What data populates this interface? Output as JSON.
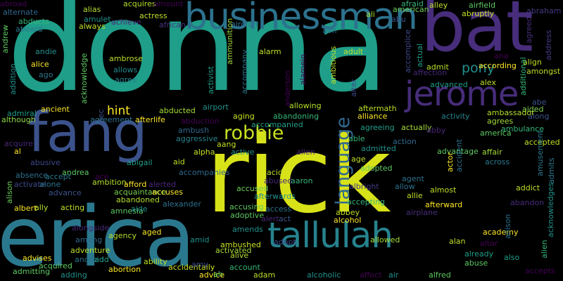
{
  "cloud": {
    "words": [
      {
        "text": "donna",
        "color": "#1f9e89"
      },
      {
        "text": "rick",
        "color": "#d8e219"
      },
      {
        "text": "erica",
        "color": "#2a788e"
      },
      {
        "text": "bat",
        "color": "#472d7b"
      },
      {
        "text": "fang",
        "color": "#3b528b"
      },
      {
        "text": "businessman",
        "color": "#2c728e"
      },
      {
        "text": "jerome",
        "color": "#472d7b"
      },
      {
        "text": "tallulah",
        "color": "#26828e"
      },
      {
        "text": "robbie",
        "color": "#c8e020"
      },
      {
        "text": "language",
        "color": "#31688e"
      },
      {
        "text": "pony",
        "color": "#21918c"
      },
      {
        "text": "hint",
        "color": "#fde725"
      },
      {
        "text": "alternate",
        "color": "#31688e"
      },
      {
        "text": "abducts",
        "color": "#35b779"
      },
      {
        "text": "aboard",
        "color": "#2a788e"
      },
      {
        "text": "alias",
        "color": "#b5de2b"
      },
      {
        "text": "amulet",
        "color": "#21918c"
      },
      {
        "text": "acquires",
        "color": "#b5de2b"
      },
      {
        "text": "achieve",
        "color": "#482878"
      },
      {
        "text": "amount",
        "color": "#440154"
      },
      {
        "text": "actress",
        "color": "#bddf26"
      },
      {
        "text": "african",
        "color": "#46337e"
      },
      {
        "text": "aircraft",
        "color": "#2c728e"
      },
      {
        "text": "always",
        "color": "#bddf26"
      },
      {
        "text": "aim",
        "color": "#31688e"
      },
      {
        "text": "ali",
        "color": "#a5db36"
      },
      {
        "text": "afraid",
        "color": "#35b779"
      },
      {
        "text": "american",
        "color": "#6ece58"
      },
      {
        "text": "abu",
        "color": "#3b528b"
      },
      {
        "text": "alley",
        "color": "#bddf26"
      },
      {
        "text": "airfield",
        "color": "#5ec962"
      },
      {
        "text": "abruptly",
        "color": "#c2df23"
      },
      {
        "text": "abraham",
        "color": "#443983"
      },
      {
        "text": "agreed",
        "color": "#472d7b"
      },
      {
        "text": "address",
        "color": "#443983"
      },
      {
        "text": "andrew",
        "color": "#5ec962"
      },
      {
        "text": "andie",
        "color": "#21918c"
      },
      {
        "text": "ambrose",
        "color": "#bddf26"
      },
      {
        "text": "alarm",
        "color": "#c2df23"
      },
      {
        "text": "adult",
        "color": "#bddf26"
      },
      {
        "text": "alice",
        "color": "#fde725"
      },
      {
        "text": "allows",
        "color": "#228c8d"
      },
      {
        "text": "ago",
        "color": "#2a788e"
      },
      {
        "text": "agree",
        "color": "#26828e"
      },
      {
        "text": "acknowledge",
        "color": "#5ec962"
      },
      {
        "text": "addition",
        "color": "#21918c"
      },
      {
        "text": "activist",
        "color": "#1f9e89"
      },
      {
        "text": "accompany",
        "color": "#2a788e"
      },
      {
        "text": "ammunition",
        "color": "#9fda3a"
      },
      {
        "text": "anderson",
        "color": "#440154"
      },
      {
        "text": "alamein",
        "color": "#440154"
      },
      {
        "text": "ambitious",
        "color": "#bddf26"
      },
      {
        "text": "alter",
        "color": "#3e4989"
      },
      {
        "text": "accomplice",
        "color": "#3e4989"
      },
      {
        "text": "actual",
        "color": "#1f9e89"
      },
      {
        "text": "affection",
        "color": "#482878"
      },
      {
        "text": "admit",
        "color": "#bddf26"
      },
      {
        "text": "according",
        "color": "#fde725"
      },
      {
        "text": "ana",
        "color": "#440154"
      },
      {
        "text": "align",
        "color": "#bddf26"
      },
      {
        "text": "amongst",
        "color": "#bddf26"
      },
      {
        "text": "additional",
        "color": "#35b779"
      },
      {
        "text": "advanced",
        "color": "#1f9e89"
      },
      {
        "text": "alex",
        "color": "#bddf26"
      },
      {
        "text": "abe",
        "color": "#3b528b"
      },
      {
        "text": "aided",
        "color": "#7ad151"
      },
      {
        "text": "along",
        "color": "#3b528b"
      },
      {
        "text": "admiral",
        "color": "#1f9e89"
      },
      {
        "text": "ancient",
        "color": "#fde725"
      },
      {
        "text": "alec",
        "color": "#3b528b"
      },
      {
        "text": "abducted",
        "color": "#a5db36"
      },
      {
        "text": "airport",
        "color": "#21918c"
      },
      {
        "text": "allowing",
        "color": "#b5de2b"
      },
      {
        "text": "aftermath",
        "color": "#bddf26"
      },
      {
        "text": "alliance",
        "color": "#fde725"
      },
      {
        "text": "although",
        "color": "#8fd744"
      },
      {
        "text": "agreement",
        "color": "#2c728e"
      },
      {
        "text": "afterlife",
        "color": "#fde725"
      },
      {
        "text": "abduction",
        "color": "#440154"
      },
      {
        "text": "aging",
        "color": "#c8e020"
      },
      {
        "text": "abandoning",
        "color": "#35b779"
      },
      {
        "text": "activity",
        "color": "#26828e"
      },
      {
        "text": "ambassador",
        "color": "#b5de2b"
      },
      {
        "text": "agrees",
        "color": "#a5db36"
      },
      {
        "text": "america",
        "color": "#5ec962"
      },
      {
        "text": "ambulance",
        "color": "#35b779"
      },
      {
        "text": "accompanied",
        "color": "#1f9e89"
      },
      {
        "text": "ambush",
        "color": "#31688e"
      },
      {
        "text": "aggressive",
        "color": "#26828e"
      },
      {
        "text": "agreeing",
        "color": "#1f9e89"
      },
      {
        "text": "actually",
        "color": "#a5db36"
      },
      {
        "text": "abby",
        "color": "#482878"
      },
      {
        "text": "aang",
        "color": "#c2df23"
      },
      {
        "text": "able",
        "color": "#35b779"
      },
      {
        "text": "action",
        "color": "#31688e"
      },
      {
        "text": "accepted",
        "color": "#c2df23"
      },
      {
        "text": "acquire",
        "color": "#482878"
      },
      {
        "text": "al",
        "color": "#fde725"
      },
      {
        "text": "alpha",
        "color": "#c8e020"
      },
      {
        "text": "active",
        "color": "#21918c"
      },
      {
        "text": "allen",
        "color": "#482878"
      },
      {
        "text": "admitted",
        "color": "#21918c"
      },
      {
        "text": "advantage",
        "color": "#5ec962"
      },
      {
        "text": "affair",
        "color": "#a5db36"
      },
      {
        "text": "across",
        "color": "#2a788e"
      },
      {
        "text": "aid",
        "color": "#bddf26"
      },
      {
        "text": "abusive",
        "color": "#3e4989"
      },
      {
        "text": "abigail",
        "color": "#1f9e89"
      },
      {
        "text": "andrea",
        "color": "#5ec962"
      },
      {
        "text": "accompanies",
        "color": "#31688e"
      },
      {
        "text": "acid",
        "color": "#bddf26"
      },
      {
        "text": "age",
        "color": "#bddf26"
      },
      {
        "text": "adopted",
        "color": "#5ec962"
      },
      {
        "text": "actor",
        "color": "#fde725"
      },
      {
        "text": "accident",
        "color": "#2c728e"
      },
      {
        "text": "amusement",
        "color": "#2a788e"
      },
      {
        "text": "admits",
        "color": "#2a788e"
      },
      {
        "text": "absence",
        "color": "#2c728e"
      },
      {
        "text": "accept",
        "color": "#2a788e"
      },
      {
        "text": "ace",
        "color": "#440154"
      },
      {
        "text": "activate",
        "color": "#3e4989"
      },
      {
        "text": "alone",
        "color": "#2c728e"
      },
      {
        "text": "ambition",
        "color": "#b5de2b"
      },
      {
        "text": "afford",
        "color": "#fde725"
      },
      {
        "text": "alerted",
        "color": "#482878"
      },
      {
        "text": "abused",
        "color": "#482878"
      },
      {
        "text": "aaron",
        "color": "#35b779"
      },
      {
        "text": "agent",
        "color": "#2c728e"
      },
      {
        "text": "albright",
        "color": "#443983"
      },
      {
        "text": "allow",
        "color": "#2c728e"
      },
      {
        "text": "almost",
        "color": "#bddf26"
      },
      {
        "text": "addict",
        "color": "#bddf26"
      },
      {
        "text": "alison",
        "color": "#6ece58"
      },
      {
        "text": "advance",
        "color": "#3b528b"
      },
      {
        "text": "acquaintance",
        "color": "#7ad151"
      },
      {
        "text": "accuses",
        "color": "#fde725"
      },
      {
        "text": "accused",
        "color": "#6ece58"
      },
      {
        "text": "afterwards",
        "color": "#21918c"
      },
      {
        "text": "accepting",
        "color": "#35b779"
      },
      {
        "text": "allie",
        "color": "#bddf26"
      },
      {
        "text": "afterward",
        "color": "#fde725"
      },
      {
        "text": "abandon",
        "color": "#472d7b"
      },
      {
        "text": "abandoned",
        "color": "#b5de2b"
      },
      {
        "text": "albert",
        "color": "#fde725"
      },
      {
        "text": "ally",
        "color": "#b5de2b"
      },
      {
        "text": "acting",
        "color": "#bddf26"
      },
      {
        "text": "amnesia",
        "color": "#5ec962"
      },
      {
        "text": "aide",
        "color": "#21918c"
      },
      {
        "text": "alexander",
        "color": "#2c728e"
      },
      {
        "text": "accusing",
        "color": "#5ec962"
      },
      {
        "text": "access",
        "color": "#2c728e"
      },
      {
        "text": "abbey",
        "color": "#c2df23"
      },
      {
        "text": "airplane",
        "color": "#472d7b"
      },
      {
        "text": "adoptive",
        "color": "#5ec962"
      },
      {
        "text": "alert",
        "color": "#482878"
      },
      {
        "text": "act",
        "color": "#3b528b"
      },
      {
        "text": "alcohol",
        "color": "#fde725"
      },
      {
        "text": "alongside",
        "color": "#482878"
      },
      {
        "text": "agency",
        "color": "#b5de2b"
      },
      {
        "text": "aged",
        "color": "#fde725"
      },
      {
        "text": "amends",
        "color": "#21918c"
      },
      {
        "text": "academy",
        "color": "#fde725"
      },
      {
        "text": "alien",
        "color": "#35b779"
      },
      {
        "text": "acknowledges",
        "color": "#21918c"
      },
      {
        "text": "among",
        "color": "#31688e"
      },
      {
        "text": "adopt",
        "color": "#3e4989"
      },
      {
        "text": "allowed",
        "color": "#a5db36"
      },
      {
        "text": "alan",
        "color": "#bddf26"
      },
      {
        "text": "altar",
        "color": "#440154"
      },
      {
        "text": "adventure",
        "color": "#bddf26"
      },
      {
        "text": "amid",
        "color": "#21918c"
      },
      {
        "text": "ambushed",
        "color": "#c8e020"
      },
      {
        "text": "activated",
        "color": "#a5db36"
      },
      {
        "text": "alive",
        "color": "#b5de2b"
      },
      {
        "text": "already",
        "color": "#1f9e89"
      },
      {
        "text": "allison",
        "color": "#2c728e"
      },
      {
        "text": "android",
        "color": "#2c728e"
      },
      {
        "text": "add",
        "color": "#1f9e89"
      },
      {
        "text": "ability",
        "color": "#bddf26"
      },
      {
        "text": "advises",
        "color": "#fde725"
      },
      {
        "text": "also",
        "color": "#1f9e89"
      },
      {
        "text": "abuse",
        "color": "#5ec962"
      },
      {
        "text": "acquired",
        "color": "#5ec962"
      },
      {
        "text": "abortion",
        "color": "#fde725"
      },
      {
        "text": "accidentally",
        "color": "#c8e020"
      },
      {
        "text": "amy",
        "color": "#3e4989"
      },
      {
        "text": "account",
        "color": "#35b779"
      },
      {
        "text": "accepts",
        "color": "#440154"
      },
      {
        "text": "admitting",
        "color": "#5ec962"
      },
      {
        "text": "adding",
        "color": "#21918c"
      },
      {
        "text": "advice",
        "color": "#fde725"
      },
      {
        "text": "ah",
        "color": "#5ec962"
      },
      {
        "text": "adam",
        "color": "#bddf26"
      },
      {
        "text": "alcoholic",
        "color": "#21918c"
      },
      {
        "text": "affect",
        "color": "#440154"
      },
      {
        "text": "air",
        "color": "#21918c"
      },
      {
        "text": "alfred",
        "color": "#5ec962"
      },
      {
        "text": "activates",
        "color": "#c2df23"
      },
      {
        "text": "abroad",
        "color": "#440154"
      }
    ]
  }
}
